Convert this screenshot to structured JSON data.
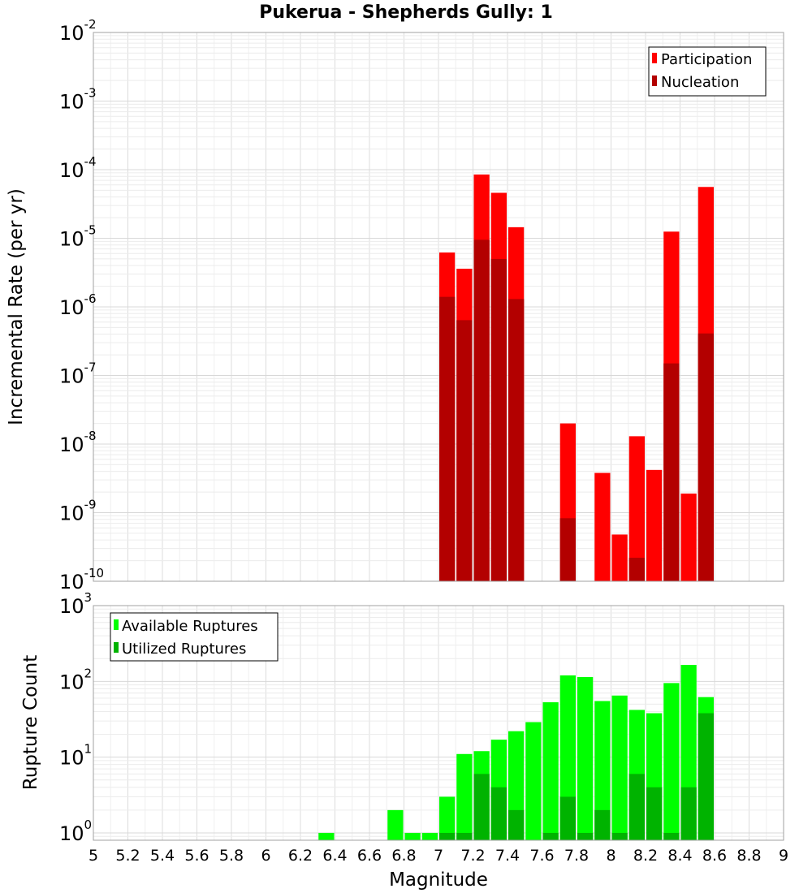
{
  "title": "Pukerua - Shepherds Gully: 1",
  "xlabel": "Magnitude",
  "chart_data": [
    {
      "type": "bar",
      "ylabel": "Incremental Rate (per yr)",
      "yscale": "log",
      "ylim": [
        1e-10,
        0.01
      ],
      "xlim": [
        5,
        9
      ],
      "bar_width": 0.1,
      "grid": true,
      "legend_position": "top-right",
      "yticks": [
        {
          "base": "10",
          "exp": "-10",
          "value": 1e-10
        },
        {
          "base": "10",
          "exp": "-9",
          "value": 1e-09
        },
        {
          "base": "10",
          "exp": "-8",
          "value": 1e-08
        },
        {
          "base": "10",
          "exp": "-7",
          "value": 1e-07
        },
        {
          "base": "10",
          "exp": "-6",
          "value": 1e-06
        },
        {
          "base": "10",
          "exp": "-5",
          "value": 1e-05
        },
        {
          "base": "10",
          "exp": "-4",
          "value": 0.0001
        },
        {
          "base": "10",
          "exp": "-3",
          "value": 0.001
        },
        {
          "base": "10",
          "exp": "-2",
          "value": 0.01
        }
      ],
      "series": [
        {
          "name": "Participation",
          "color": "#ff0000",
          "points": [
            {
              "x": 7.05,
              "y": 6.2e-06
            },
            {
              "x": 7.15,
              "y": 3.6e-06
            },
            {
              "x": 7.25,
              "y": 8.5e-05
            },
            {
              "x": 7.35,
              "y": 4.6e-05
            },
            {
              "x": 7.45,
              "y": 1.45e-05
            },
            {
              "x": 7.75,
              "y": 2e-08
            },
            {
              "x": 7.95,
              "y": 3.8e-09
            },
            {
              "x": 8.05,
              "y": 4.8e-10
            },
            {
              "x": 8.15,
              "y": 1.3e-08
            },
            {
              "x": 8.25,
              "y": 4.2e-09
            },
            {
              "x": 8.35,
              "y": 1.25e-05
            },
            {
              "x": 8.45,
              "y": 1.9e-09
            },
            {
              "x": 8.55,
              "y": 5.6e-05
            }
          ]
        },
        {
          "name": "Nucleation",
          "color": "#b30000",
          "points": [
            {
              "x": 7.05,
              "y": 1.4e-06
            },
            {
              "x": 7.15,
              "y": 6.4e-07
            },
            {
              "x": 7.25,
              "y": 9.5e-06
            },
            {
              "x": 7.35,
              "y": 5e-06
            },
            {
              "x": 7.45,
              "y": 1.3e-06
            },
            {
              "x": 7.75,
              "y": 8.3e-10
            },
            {
              "x": 8.15,
              "y": 2.2e-10
            },
            {
              "x": 8.35,
              "y": 1.5e-07
            },
            {
              "x": 8.55,
              "y": 4.1e-07
            }
          ]
        }
      ]
    },
    {
      "type": "bar",
      "ylabel": "Rupture Count",
      "yscale": "log",
      "ylim": [
        0.8,
        1000
      ],
      "xlim": [
        5,
        9
      ],
      "bar_width": 0.1,
      "grid": true,
      "legend_position": "top-left",
      "yticks": [
        {
          "base": "10",
          "exp": "0",
          "value": 1
        },
        {
          "base": "10",
          "exp": "1",
          "value": 10
        },
        {
          "base": "10",
          "exp": "2",
          "value": 100
        },
        {
          "base": "10",
          "exp": "3",
          "value": 1000
        }
      ],
      "xticks": [
        "5",
        "5.2",
        "5.4",
        "5.6",
        "5.8",
        "6",
        "6.2",
        "6.4",
        "6.6",
        "6.8",
        "7",
        "7.2",
        "7.4",
        "7.6",
        "7.8",
        "8",
        "8.2",
        "8.4",
        "8.6",
        "8.8",
        "9"
      ],
      "series": [
        {
          "name": "Available Ruptures",
          "color": "#00ff00",
          "points": [
            {
              "x": 6.35,
              "y": 1
            },
            {
              "x": 6.75,
              "y": 2
            },
            {
              "x": 6.85,
              "y": 1
            },
            {
              "x": 6.95,
              "y": 1
            },
            {
              "x": 7.05,
              "y": 3
            },
            {
              "x": 7.15,
              "y": 11
            },
            {
              "x": 7.25,
              "y": 12
            },
            {
              "x": 7.35,
              "y": 17
            },
            {
              "x": 7.45,
              "y": 22
            },
            {
              "x": 7.55,
              "y": 29
            },
            {
              "x": 7.65,
              "y": 53
            },
            {
              "x": 7.75,
              "y": 120
            },
            {
              "x": 7.85,
              "y": 114
            },
            {
              "x": 7.95,
              "y": 55
            },
            {
              "x": 8.05,
              "y": 65
            },
            {
              "x": 8.15,
              "y": 42
            },
            {
              "x": 8.25,
              "y": 38
            },
            {
              "x": 8.35,
              "y": 95
            },
            {
              "x": 8.45,
              "y": 165
            },
            {
              "x": 8.55,
              "y": 62
            }
          ]
        },
        {
          "name": "Utilized Ruptures",
          "color": "#00b300",
          "points": [
            {
              "x": 7.05,
              "y": 1
            },
            {
              "x": 7.15,
              "y": 1
            },
            {
              "x": 7.25,
              "y": 6
            },
            {
              "x": 7.35,
              "y": 4
            },
            {
              "x": 7.45,
              "y": 2
            },
            {
              "x": 7.55,
              "y": 0
            },
            {
              "x": 7.65,
              "y": 1
            },
            {
              "x": 7.75,
              "y": 3
            },
            {
              "x": 7.85,
              "y": 1
            },
            {
              "x": 7.95,
              "y": 2
            },
            {
              "x": 8.05,
              "y": 1
            },
            {
              "x": 8.15,
              "y": 6
            },
            {
              "x": 8.25,
              "y": 4
            },
            {
              "x": 8.35,
              "y": 1
            },
            {
              "x": 8.45,
              "y": 4
            },
            {
              "x": 8.55,
              "y": 38
            }
          ]
        }
      ]
    }
  ]
}
